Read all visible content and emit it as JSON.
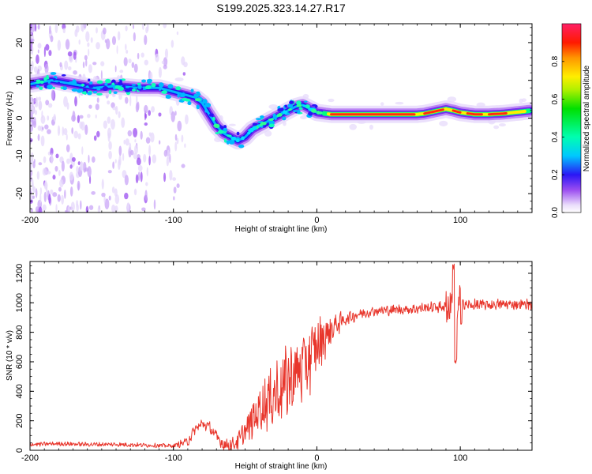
{
  "title": "S199.2025.323.14.27.R17",
  "colors": {
    "snr_line": "#e8362c",
    "background": "#ffffff",
    "axis": "#000000"
  },
  "chart_data": [
    {
      "type": "heatmap",
      "name": "spectrogram",
      "xlabel": "Height of straight line (km)",
      "ylabel": "Frequency (Hz)",
      "xlim": [
        -200,
        150
      ],
      "ylim": [
        -25,
        25
      ],
      "xticks": [
        -200,
        -100,
        0,
        100
      ],
      "yticks": [
        -20,
        -10,
        0,
        10,
        20
      ],
      "ridge": {
        "x": [
          -200,
          -185,
          -170,
          -155,
          -140,
          -125,
          -110,
          -100,
          -95,
          -90,
          -85,
          -80,
          -75,
          -70,
          -65,
          -60,
          -55,
          -50,
          -45,
          -40,
          -35,
          -30,
          -25,
          -20,
          -15,
          -10,
          -5,
          0,
          10,
          20,
          40,
          60,
          70,
          75,
          80,
          85,
          90,
          95,
          100,
          110,
          120,
          130,
          140,
          150
        ],
        "y": [
          9,
          10,
          9,
          8,
          8.5,
          8,
          8,
          7,
          6.5,
          6,
          5.5,
          4,
          1,
          -2,
          -4,
          -5,
          -6,
          -5,
          -3,
          -2,
          -1,
          0,
          1,
          2,
          3,
          3.5,
          2.5,
          1.5,
          1,
          1,
          1,
          1,
          1,
          1.2,
          1.6,
          2,
          2.4,
          2,
          1.5,
          1,
          1,
          1.2,
          1.6,
          2
        ]
      },
      "colorbar": {
        "label": "Normalized spectral amplitude",
        "range": [
          0,
          1
        ],
        "ticks": [
          0,
          0.2,
          0.4,
          0.6,
          0.8
        ],
        "tick_labels": [
          "0.0",
          "0.2",
          "0.4",
          "0.6",
          "0.8"
        ]
      }
    },
    {
      "type": "line",
      "name": "snr",
      "xlabel": "Height of straight line (km)",
      "ylabel": "SNR (10 * v/v)",
      "xlim": [
        -200,
        150
      ],
      "ylim": [
        0,
        1280
      ],
      "xticks": [
        -200,
        -100,
        0,
        100
      ],
      "yticks": [
        0,
        200,
        400,
        600,
        800,
        1000,
        1200
      ],
      "envelope": {
        "x": [
          -200,
          -180,
          -160,
          -140,
          -120,
          -100,
          -90,
          -85,
          -80,
          -75,
          -70,
          -65,
          -60,
          -55,
          -50,
          -45,
          -40,
          -35,
          -30,
          -25,
          -20,
          -15,
          -10,
          -5,
          0,
          5,
          10,
          15,
          20,
          25,
          30,
          35,
          40,
          50,
          60,
          70,
          80,
          90,
          100,
          110,
          120,
          130,
          140,
          150
        ],
        "y": [
          40,
          45,
          40,
          40,
          35,
          30,
          60,
          140,
          180,
          160,
          90,
          40,
          35,
          60,
          130,
          200,
          280,
          330,
          380,
          430,
          470,
          520,
          560,
          620,
          700,
          760,
          820,
          860,
          890,
          910,
          925,
          935,
          945,
          950,
          955,
          960,
          970,
          975,
          980,
          985,
          985,
          990,
          990,
          990
        ]
      },
      "noise_amplitude": {
        "x": [
          -200,
          -100,
          -90,
          -60,
          -50,
          -30,
          -10,
          0,
          10,
          20,
          40,
          80,
          90,
          150
        ],
        "y": [
          12,
          12,
          30,
          40,
          70,
          200,
          220,
          180,
          90,
          40,
          30,
          30,
          35,
          30
        ]
      },
      "spike": {
        "x": 96,
        "max": 1280,
        "min": 580
      }
    }
  ]
}
